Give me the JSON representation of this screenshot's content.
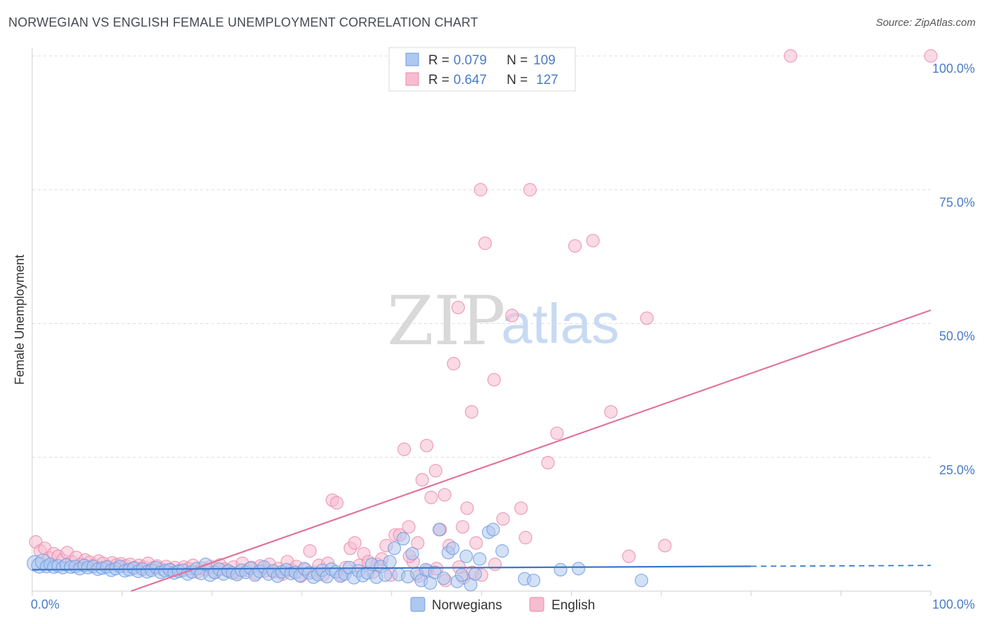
{
  "header": {
    "title": "NORWEGIAN VS ENGLISH FEMALE UNEMPLOYMENT CORRELATION CHART",
    "source": "Source: ZipAtlas.com"
  },
  "watermark": {
    "zip": "ZIP",
    "atlas": "atlas"
  },
  "legend_top": {
    "rows": [
      {
        "r_label": "R = ",
        "r_value": "0.079",
        "n_label": "N = ",
        "n_value": "109",
        "color": "#aec8f0",
        "stroke": "#6f9be0"
      },
      {
        "r_label": "R = ",
        "r_value": "0.647",
        "n_label": "N = ",
        "n_value": "127",
        "color": "#f6bcd0",
        "stroke": "#e98aab"
      }
    ]
  },
  "legend_bottom": [
    {
      "label": "Norwegians",
      "color": "#aec8f0",
      "stroke": "#6f9be0"
    },
    {
      "label": "English",
      "color": "#f6bcd0",
      "stroke": "#e98aab"
    }
  ],
  "chart_data": {
    "type": "scatter",
    "title": "NORWEGIAN VS ENGLISH FEMALE UNEMPLOYMENT CORRELATION CHART",
    "xlabel": "",
    "ylabel": "Female Unemployment",
    "xlim": [
      0,
      100
    ],
    "ylim": [
      0,
      100
    ],
    "x_tick_labels": [
      "0.0%",
      "100.0%"
    ],
    "y_tick_labels": [
      "100.0%",
      "75.0%",
      "50.0%",
      "25.0%"
    ],
    "y_tick_values": [
      100,
      75,
      50,
      25
    ],
    "grid": true,
    "legend_placement": "top-center",
    "series": [
      {
        "name": "Norwegians",
        "color": "#6f9be0",
        "fill": "#aec8f0",
        "trend": {
          "x": [
            0,
            100
          ],
          "y": [
            4.0,
            4.8
          ],
          "dashed_from": 80
        },
        "points": [
          [
            0.3,
            5.2
          ],
          [
            0.8,
            4.8
          ],
          [
            1.2,
            5.5
          ],
          [
            1.6,
            4.6
          ],
          [
            2.0,
            5.0
          ],
          [
            2.4,
            4.5
          ],
          [
            2.9,
            4.7
          ],
          [
            3.4,
            4.4
          ],
          [
            3.8,
            4.9
          ],
          [
            4.3,
            4.5
          ],
          [
            4.8,
            4.6
          ],
          [
            5.3,
            4.2
          ],
          [
            5.8,
            4.8
          ],
          [
            6.2,
            4.4
          ],
          [
            6.8,
            4.6
          ],
          [
            7.3,
            4.1
          ],
          [
            7.8,
            4.3
          ],
          [
            8.3,
            4.5
          ],
          [
            8.8,
            3.9
          ],
          [
            9.3,
            4.2
          ],
          [
            9.8,
            4.6
          ],
          [
            10.3,
            3.8
          ],
          [
            10.8,
            4.0
          ],
          [
            11.3,
            4.3
          ],
          [
            11.8,
            3.7
          ],
          [
            12.3,
            4.1
          ],
          [
            12.8,
            3.6
          ],
          [
            13.3,
            3.9
          ],
          [
            13.8,
            4.4
          ],
          [
            14.3,
            3.5
          ],
          [
            14.8,
            3.8
          ],
          [
            15.3,
            4.0
          ],
          [
            15.8,
            3.4
          ],
          [
            16.3,
            3.7
          ],
          [
            16.8,
            3.9
          ],
          [
            17.3,
            3.2
          ],
          [
            17.8,
            3.6
          ],
          [
            18.3,
            4.2
          ],
          [
            18.8,
            3.3
          ],
          [
            19.3,
            5.0
          ],
          [
            19.8,
            3.0
          ],
          [
            20.3,
            3.5
          ],
          [
            20.8,
            4.1
          ],
          [
            21.3,
            3.2
          ],
          [
            21.8,
            3.8
          ],
          [
            22.3,
            3.4
          ],
          [
            22.8,
            3.1
          ],
          [
            23.3,
            3.9
          ],
          [
            23.8,
            3.5
          ],
          [
            24.3,
            4.3
          ],
          [
            24.8,
            3.0
          ],
          [
            25.3,
            3.7
          ],
          [
            25.8,
            4.5
          ],
          [
            26.3,
            3.2
          ],
          [
            26.8,
            3.8
          ],
          [
            27.3,
            2.8
          ],
          [
            27.8,
            3.6
          ],
          [
            28.3,
            4.0
          ],
          [
            28.8,
            3.3
          ],
          [
            29.3,
            3.5
          ],
          [
            29.8,
            2.9
          ],
          [
            30.3,
            4.2
          ],
          [
            30.8,
            3.4
          ],
          [
            31.3,
            2.6
          ],
          [
            31.8,
            3.1
          ],
          [
            32.3,
            3.9
          ],
          [
            32.8,
            2.7
          ],
          [
            33.3,
            4.1
          ],
          [
            33.8,
            3.6
          ],
          [
            34.3,
            2.8
          ],
          [
            34.8,
            3.2
          ],
          [
            35.3,
            4.4
          ],
          [
            35.8,
            2.5
          ],
          [
            36.3,
            3.8
          ],
          [
            36.8,
            2.9
          ],
          [
            37.3,
            3.4
          ],
          [
            37.8,
            5.0
          ],
          [
            38.3,
            2.6
          ],
          [
            38.8,
            4.6
          ],
          [
            39.3,
            3.0
          ],
          [
            39.8,
            5.5
          ],
          [
            40.3,
            8.0
          ],
          [
            40.8,
            3.1
          ],
          [
            41.3,
            9.8
          ],
          [
            41.8,
            2.7
          ],
          [
            42.3,
            7.0
          ],
          [
            42.8,
            3.3
          ],
          [
            43.3,
            2.0
          ],
          [
            43.8,
            4.0
          ],
          [
            44.3,
            1.5
          ],
          [
            44.8,
            3.5
          ],
          [
            45.3,
            11.5
          ],
          [
            45.8,
            2.4
          ],
          [
            46.3,
            7.2
          ],
          [
            46.8,
            8.0
          ],
          [
            47.3,
            1.8
          ],
          [
            47.8,
            3.0
          ],
          [
            48.3,
            6.5
          ],
          [
            48.8,
            1.2
          ],
          [
            49.3,
            3.2
          ],
          [
            49.8,
            6.0
          ],
          [
            50.8,
            11.0
          ],
          [
            51.3,
            11.5
          ],
          [
            52.3,
            7.5
          ],
          [
            54.8,
            2.3
          ],
          [
            55.8,
            2.0
          ],
          [
            58.8,
            4.0
          ],
          [
            60.8,
            4.2
          ],
          [
            67.8,
            2.0
          ]
        ]
      },
      {
        "name": "English",
        "color": "#e98aab",
        "fill": "#f6bcd0",
        "trend": {
          "x": [
            11,
            100
          ],
          "y": [
            0,
            52.5
          ]
        },
        "points": [
          [
            0.4,
            9.2
          ],
          [
            0.9,
            7.5
          ],
          [
            1.4,
            8.0
          ],
          [
            1.9,
            6.2
          ],
          [
            2.4,
            7.0
          ],
          [
            2.9,
            6.5
          ],
          [
            3.4,
            5.8
          ],
          [
            3.9,
            7.2
          ],
          [
            4.4,
            5.5
          ],
          [
            4.9,
            6.3
          ],
          [
            5.4,
            5.0
          ],
          [
            5.9,
            5.8
          ],
          [
            6.4,
            5.4
          ],
          [
            6.9,
            4.8
          ],
          [
            7.4,
            5.6
          ],
          [
            7.9,
            5.2
          ],
          [
            8.4,
            4.6
          ],
          [
            8.9,
            5.3
          ],
          [
            9.4,
            4.9
          ],
          [
            9.9,
            5.1
          ],
          [
            10.4,
            4.7
          ],
          [
            10.9,
            5.0
          ],
          [
            11.4,
            4.4
          ],
          [
            11.9,
            4.8
          ],
          [
            12.4,
            4.5
          ],
          [
            12.9,
            5.2
          ],
          [
            13.4,
            4.3
          ],
          [
            13.9,
            4.7
          ],
          [
            14.4,
            4.1
          ],
          [
            14.9,
            4.6
          ],
          [
            15.4,
            4.0
          ],
          [
            15.9,
            4.4
          ],
          [
            16.4,
            3.8
          ],
          [
            16.9,
            4.5
          ],
          [
            17.4,
            4.2
          ],
          [
            17.9,
            4.8
          ],
          [
            18.4,
            3.6
          ],
          [
            18.9,
            4.3
          ],
          [
            19.4,
            4.0
          ],
          [
            19.9,
            4.6
          ],
          [
            20.4,
            3.5
          ],
          [
            20.9,
            4.9
          ],
          [
            21.4,
            4.1
          ],
          [
            21.9,
            3.7
          ],
          [
            22.4,
            4.5
          ],
          [
            22.9,
            3.4
          ],
          [
            23.4,
            5.2
          ],
          [
            23.9,
            3.9
          ],
          [
            24.4,
            4.4
          ],
          [
            24.9,
            3.3
          ],
          [
            25.4,
            4.7
          ],
          [
            25.9,
            3.8
          ],
          [
            26.4,
            5.0
          ],
          [
            26.9,
            3.6
          ],
          [
            27.4,
            4.2
          ],
          [
            27.9,
            3.2
          ],
          [
            28.4,
            5.5
          ],
          [
            28.9,
            3.9
          ],
          [
            29.4,
            4.6
          ],
          [
            29.9,
            2.8
          ],
          [
            30.4,
            4.0
          ],
          [
            30.9,
            7.5
          ],
          [
            31.4,
            3.5
          ],
          [
            31.9,
            4.8
          ],
          [
            32.4,
            3.1
          ],
          [
            32.9,
            5.2
          ],
          [
            33.4,
            17.0
          ],
          [
            33.9,
            16.5
          ],
          [
            34.4,
            3.0
          ],
          [
            34.9,
            4.4
          ],
          [
            35.4,
            8.0
          ],
          [
            35.9,
            9.0
          ],
          [
            36.4,
            4.8
          ],
          [
            36.9,
            7.0
          ],
          [
            37.4,
            5.5
          ],
          [
            37.9,
            3.5
          ],
          [
            38.4,
            5.0
          ],
          [
            38.9,
            6.0
          ],
          [
            39.4,
            8.5
          ],
          [
            39.9,
            3.0
          ],
          [
            40.4,
            10.5
          ],
          [
            40.9,
            10.5
          ],
          [
            41.4,
            26.5
          ],
          [
            41.9,
            12.0
          ],
          [
            42.4,
            5.5
          ],
          [
            42.9,
            9.0
          ],
          [
            43.4,
            20.8
          ],
          [
            43.9,
            27.2
          ],
          [
            44.4,
            17.5
          ],
          [
            44.9,
            22.5
          ],
          [
            45.4,
            11.5
          ],
          [
            45.9,
            18.0
          ],
          [
            46.4,
            8.5
          ],
          [
            46.9,
            42.5
          ],
          [
            47.4,
            53.0
          ],
          [
            47.9,
            12.0
          ],
          [
            48.4,
            15.5
          ],
          [
            48.9,
            33.5
          ],
          [
            49.4,
            9.0
          ],
          [
            49.9,
            75.0
          ],
          [
            50.4,
            65.0
          ],
          [
            51.4,
            39.5
          ],
          [
            52.4,
            13.5
          ],
          [
            53.4,
            51.5
          ],
          [
            54.4,
            15.5
          ],
          [
            54.9,
            10.0
          ],
          [
            55.4,
            75.0
          ],
          [
            57.4,
            24.0
          ],
          [
            58.4,
            29.5
          ],
          [
            60.4,
            64.5
          ],
          [
            62.4,
            65.5
          ],
          [
            64.4,
            33.5
          ],
          [
            66.4,
            6.5
          ],
          [
            68.4,
            51.0
          ],
          [
            70.4,
            8.5
          ],
          [
            84.4,
            100
          ],
          [
            100,
            100
          ],
          [
            48.0,
            2.5
          ],
          [
            49.0,
            3.5
          ],
          [
            50.0,
            3.0
          ],
          [
            47.5,
            4.5
          ],
          [
            51.5,
            5.0
          ],
          [
            43.0,
            2.8
          ],
          [
            44.0,
            3.8
          ],
          [
            46.0,
            2.0
          ],
          [
            45.0,
            4.2
          ],
          [
            42.0,
            6.5
          ]
        ]
      }
    ]
  }
}
